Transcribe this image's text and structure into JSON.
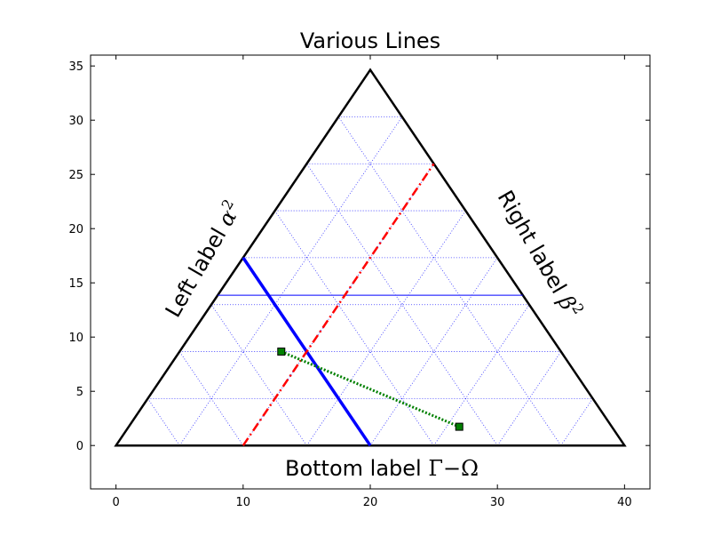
{
  "chart_data": {
    "type": "ternary",
    "title": "Various Lines",
    "scale": 40,
    "xlim": [
      -2,
      42
    ],
    "ylim": [
      -4,
      36
    ],
    "x_ticks": [
      "0",
      "10",
      "20",
      "30",
      "40"
    ],
    "y_ticks": [
      "0",
      "5",
      "10",
      "15",
      "20",
      "25",
      "30",
      "35"
    ],
    "grid_step": 5,
    "grid_color": "#0000ff",
    "left_label": {
      "text": "Left label ",
      "symbol": "α",
      "exponent": "2"
    },
    "right_label": {
      "text": "Right label ",
      "symbol": "β",
      "exponent": "2"
    },
    "bottom_label": {
      "text": "Bottom label ",
      "expr": "Γ−Ω"
    },
    "lines": [
      {
        "style": "solid",
        "color": "#0000ff",
        "width": 1,
        "points": [
          [
            8,
            13.86
          ],
          [
            32,
            13.86
          ]
        ]
      },
      {
        "style": "solid-thick",
        "color": "#0000ff",
        "width": 3.5,
        "points": [
          [
            10,
            17.32
          ],
          [
            20,
            0
          ]
        ]
      },
      {
        "style": "dash-dot",
        "color": "#ff0000",
        "width": 2.5,
        "points": [
          [
            10,
            0
          ],
          [
            25,
            25.98
          ]
        ]
      },
      {
        "style": "dotted-markers",
        "color": "#008000",
        "width": 3,
        "points": [
          [
            13,
            8.66
          ],
          [
            27,
            1.73
          ]
        ]
      }
    ]
  }
}
